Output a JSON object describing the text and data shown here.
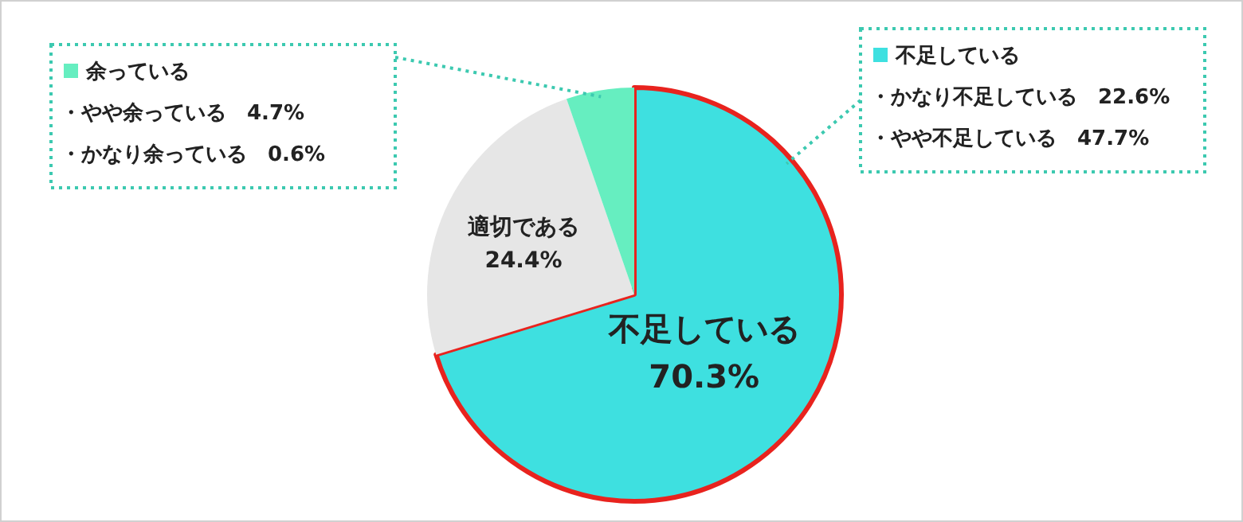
{
  "chart_data": {
    "type": "pie",
    "categories": [
      "不足している",
      "適切である",
      "余っている"
    ],
    "values": [
      70.3,
      24.4,
      5.3
    ],
    "colors": [
      "#3ee0e0",
      "#e6e6e6",
      "#66eec0"
    ],
    "value_labels": [
      "70.3%",
      "24.4%",
      null
    ],
    "legend": "top",
    "annotations": [
      {
        "text": "・やや余っている　4.7%",
        "x": "余っている"
      },
      {
        "text": "・かなり余っている　0.6%",
        "x": "余っている"
      },
      {
        "text": "・かなり不足している　22.6%",
        "x": "不足している"
      },
      {
        "text": "・やや不足している　47.7%",
        "x": "不足している"
      }
    ]
  }
}
